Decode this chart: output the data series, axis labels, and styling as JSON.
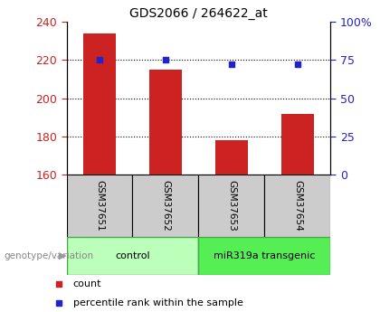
{
  "title": "GDS2066 / 264622_at",
  "samples": [
    "GSM37651",
    "GSM37652",
    "GSM37653",
    "GSM37654"
  ],
  "bar_values": [
    234,
    215,
    178,
    192
  ],
  "bar_bottom": 160,
  "percentile_values": [
    75,
    75,
    72,
    72
  ],
  "left_ylim": [
    160,
    240
  ],
  "left_yticks": [
    160,
    180,
    200,
    220,
    240
  ],
  "right_ylim": [
    0,
    100
  ],
  "right_yticks": [
    0,
    25,
    50,
    75,
    100
  ],
  "right_yticklabels": [
    "0",
    "25",
    "50",
    "75",
    "100%"
  ],
  "bar_color": "#cc2222",
  "dot_color": "#2222cc",
  "dotted_line_y": [
    180,
    200,
    220
  ],
  "groups": [
    {
      "label": "control",
      "samples": [
        0,
        1
      ],
      "bg_color": "#bbffbb",
      "border_color": "#44aa44"
    },
    {
      "label": "miR319a transgenic",
      "samples": [
        2,
        3
      ],
      "bg_color": "#55ee55",
      "border_color": "#44aa44"
    }
  ],
  "group_label": "genotype/variation",
  "legend_items": [
    {
      "label": "count",
      "color": "#cc2222"
    },
    {
      "label": "percentile rank within the sample",
      "color": "#2222cc"
    }
  ],
  "tick_label_color_left": "#cc2222",
  "tick_label_color_right": "#2222cc",
  "sample_box_color": "#cccccc",
  "bar_width": 0.5
}
